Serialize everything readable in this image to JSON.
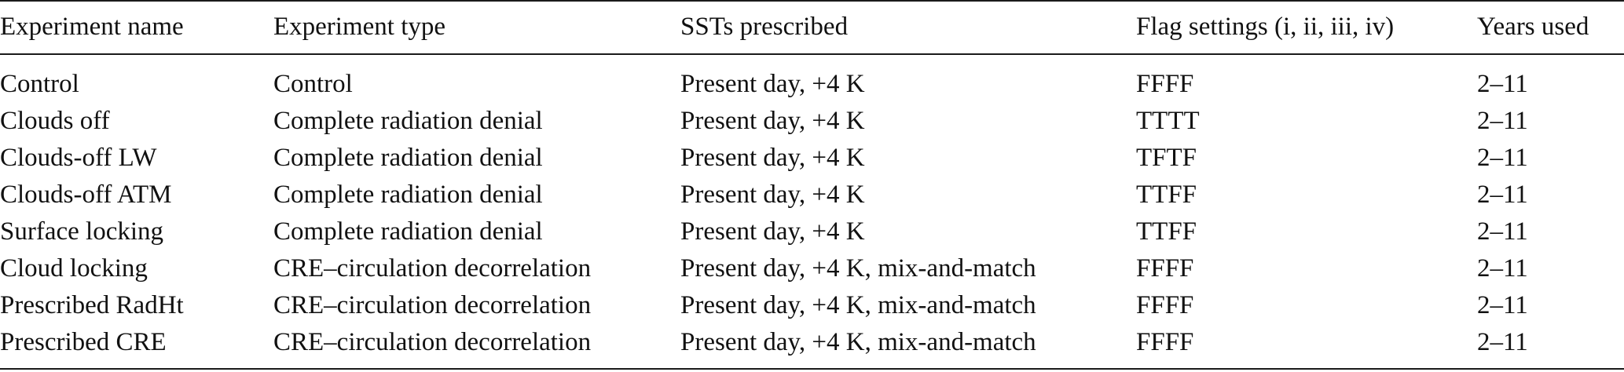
{
  "table": {
    "headers": [
      "Experiment name",
      "Experiment type",
      "SSTs prescribed",
      "Flag settings (i, ii, iii, iv)",
      "Years used"
    ],
    "rows": [
      [
        "Control",
        "Control",
        "Present day, +4 K",
        "FFFF",
        "2–11"
      ],
      [
        "Clouds off",
        "Complete radiation denial",
        "Present day, +4 K",
        "TTTT",
        "2–11"
      ],
      [
        "Clouds-off LW",
        "Complete radiation denial",
        "Present day, +4 K",
        "TFTF",
        "2–11"
      ],
      [
        "Clouds-off ATM",
        "Complete radiation denial",
        "Present day, +4 K",
        "TTFF",
        "2–11"
      ],
      [
        "Surface locking",
        "Complete radiation denial",
        "Present day, +4 K",
        "TTFF",
        "2–11"
      ],
      [
        "Cloud locking",
        "CRE–circulation decorrelation",
        "Present day, +4 K, mix-and-match",
        "FFFF",
        "2–11"
      ],
      [
        "Prescribed RadHt",
        "CRE–circulation decorrelation",
        "Present day, +4 K, mix-and-match",
        "FFFF",
        "2–11"
      ],
      [
        "Prescribed CRE",
        "CRE–circulation decorrelation",
        "Present day, +4 K, mix-and-match",
        "FFFF",
        "2–11"
      ]
    ]
  }
}
